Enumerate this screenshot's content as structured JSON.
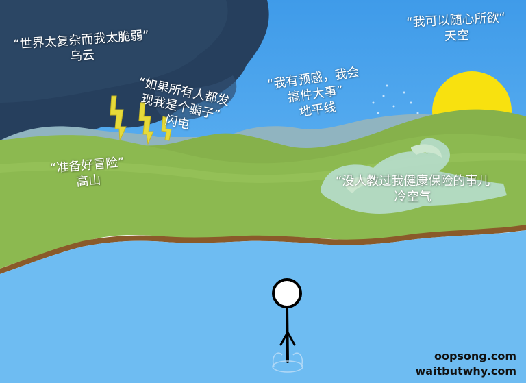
{
  "labels": {
    "dark_cloud": {
      "quote": "“世界太复杂而我太脆弱”",
      "name": "乌云"
    },
    "lightning": {
      "line1": "“如果所有人都发",
      "line2": "现我是个骗子”",
      "name": "闪电"
    },
    "horizon": {
      "line1": "“我有预感，我会",
      "line2": "搞件大事”",
      "name": "地平线"
    },
    "sky": {
      "quote": "“我可以随心所欲“",
      "name": "天空"
    },
    "mountain": {
      "quote": "“准备好冒险”",
      "name": "高山"
    },
    "cold_air": {
      "quote": "“没人教过我健康保险的事儿",
      "name": "冷空气"
    }
  },
  "credits": {
    "site1": "oopsong.com",
    "site2": "waitbutwhy.com"
  },
  "colors": {
    "sky": "#4aa3ee",
    "dark_cloud": "#27405f",
    "hills": "#8bb84f",
    "far_hills": "#8fb3c0",
    "water": "#6fbcf2",
    "sun": "#f8e10f",
    "lightning": "#e5d93b",
    "shore": "#8a5a2a"
  },
  "icons": {
    "figure": "stick-figure-icon",
    "sun": "sun-icon",
    "cloud": "storm-cloud-icon",
    "bolt": "lightning-bolt-icon",
    "wind": "cold-wind-icon"
  }
}
